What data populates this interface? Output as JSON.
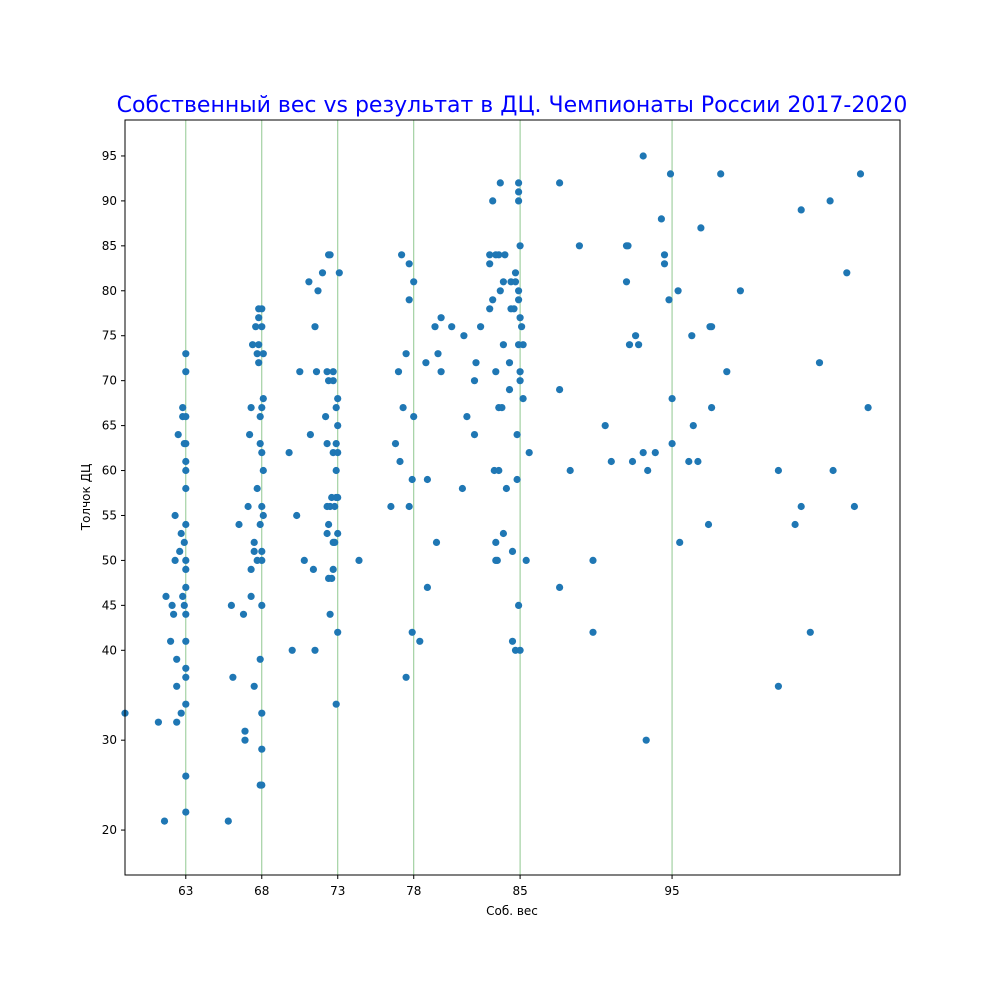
{
  "chart_data": {
    "type": "scatter",
    "title": "Собственный вес vs результат в ДЦ. Чемпионаты России 2017-2020",
    "title_color": "#0000ff",
    "xlabel": "Соб. вес",
    "ylabel": "Толчок ДЦ",
    "xlim": [
      59,
      110
    ],
    "ylim": [
      15,
      99
    ],
    "x_ticks": [
      63,
      68,
      73,
      78,
      85,
      95
    ],
    "y_ticks": [
      20,
      30,
      40,
      45,
      50,
      55,
      60,
      65,
      70,
      75,
      80,
      85,
      90,
      95
    ],
    "vertical_lines": [
      63,
      68,
      73,
      78,
      85,
      95
    ],
    "vertical_line_color": "#90c890",
    "point_color": "#1f77b4",
    "grid": false,
    "points": [
      [
        59.0,
        33
      ],
      [
        61.2,
        32
      ],
      [
        61.6,
        21
      ],
      [
        61.7,
        46
      ],
      [
        62.0,
        41
      ],
      [
        62.1,
        45
      ],
      [
        62.2,
        44
      ],
      [
        62.3,
        55
      ],
      [
        62.3,
        50
      ],
      [
        62.4,
        39
      ],
      [
        62.4,
        36
      ],
      [
        62.4,
        32
      ],
      [
        62.5,
        64
      ],
      [
        62.6,
        51
      ],
      [
        62.7,
        53
      ],
      [
        62.7,
        33
      ],
      [
        62.8,
        66
      ],
      [
        62.8,
        67
      ],
      [
        62.8,
        46
      ],
      [
        62.9,
        52
      ],
      [
        62.9,
        45
      ],
      [
        62.9,
        63
      ],
      [
        63.0,
        73
      ],
      [
        63.0,
        71
      ],
      [
        63.0,
        66
      ],
      [
        63.0,
        63
      ],
      [
        63.0,
        61
      ],
      [
        63.0,
        60
      ],
      [
        63.0,
        58
      ],
      [
        63.0,
        54
      ],
      [
        63.0,
        50
      ],
      [
        63.0,
        49
      ],
      [
        63.0,
        47
      ],
      [
        63.0,
        44
      ],
      [
        63.0,
        41
      ],
      [
        63.0,
        38
      ],
      [
        63.0,
        37
      ],
      [
        63.0,
        34
      ],
      [
        63.0,
        26
      ],
      [
        63.0,
        22
      ],
      [
        65.8,
        21
      ],
      [
        66.0,
        45
      ],
      [
        66.1,
        37
      ],
      [
        66.5,
        54
      ],
      [
        66.8,
        44
      ],
      [
        66.9,
        30
      ],
      [
        66.9,
        31
      ],
      [
        67.1,
        56
      ],
      [
        67.2,
        64
      ],
      [
        67.3,
        67
      ],
      [
        67.3,
        49
      ],
      [
        67.3,
        46
      ],
      [
        67.5,
        36
      ],
      [
        67.4,
        74
      ],
      [
        67.5,
        51
      ],
      [
        67.5,
        52
      ],
      [
        67.6,
        76
      ],
      [
        67.7,
        73
      ],
      [
        67.7,
        58
      ],
      [
        67.7,
        50
      ],
      [
        67.8,
        78
      ],
      [
        67.8,
        77
      ],
      [
        67.8,
        74
      ],
      [
        67.8,
        72
      ],
      [
        67.9,
        66
      ],
      [
        67.9,
        63
      ],
      [
        67.9,
        54
      ],
      [
        67.9,
        39
      ],
      [
        67.9,
        25
      ],
      [
        68.0,
        78
      ],
      [
        68.0,
        76
      ],
      [
        68.0,
        67
      ],
      [
        68.0,
        62
      ],
      [
        68.0,
        56
      ],
      [
        68.0,
        51
      ],
      [
        68.0,
        50
      ],
      [
        68.0,
        45
      ],
      [
        68.0,
        33
      ],
      [
        68.0,
        29
      ],
      [
        68.0,
        25
      ],
      [
        68.1,
        73
      ],
      [
        68.1,
        68
      ],
      [
        68.1,
        60
      ],
      [
        68.1,
        55
      ],
      [
        69.8,
        62
      ],
      [
        70.0,
        40
      ],
      [
        70.3,
        55
      ],
      [
        70.5,
        71
      ],
      [
        70.8,
        50
      ],
      [
        71.1,
        81
      ],
      [
        71.2,
        64
      ],
      [
        71.4,
        49
      ],
      [
        71.5,
        40
      ],
      [
        71.5,
        76
      ],
      [
        71.6,
        71
      ],
      [
        71.7,
        80
      ],
      [
        72.0,
        82
      ],
      [
        72.2,
        66
      ],
      [
        72.3,
        63
      ],
      [
        72.3,
        71
      ],
      [
        72.3,
        56
      ],
      [
        72.3,
        53
      ],
      [
        72.4,
        84
      ],
      [
        72.4,
        70
      ],
      [
        72.4,
        54
      ],
      [
        72.4,
        48
      ],
      [
        72.5,
        84
      ],
      [
        72.5,
        44
      ],
      [
        72.5,
        56
      ],
      [
        72.6,
        57
      ],
      [
        72.6,
        48
      ],
      [
        72.7,
        71
      ],
      [
        72.7,
        70
      ],
      [
        72.7,
        62
      ],
      [
        72.7,
        52
      ],
      [
        72.7,
        49
      ],
      [
        72.8,
        56
      ],
      [
        72.8,
        52
      ],
      [
        72.9,
        67
      ],
      [
        72.9,
        63
      ],
      [
        72.9,
        60
      ],
      [
        72.9,
        57
      ],
      [
        72.9,
        34
      ],
      [
        73.0,
        68
      ],
      [
        73.0,
        65
      ],
      [
        73.0,
        62
      ],
      [
        73.0,
        57
      ],
      [
        73.0,
        53
      ],
      [
        73.0,
        42
      ],
      [
        73.1,
        82
      ],
      [
        74.4,
        50
      ],
      [
        76.5,
        56
      ],
      [
        76.8,
        63
      ],
      [
        77.0,
        71
      ],
      [
        77.1,
        61
      ],
      [
        77.2,
        84
      ],
      [
        77.3,
        67
      ],
      [
        77.5,
        73
      ],
      [
        77.5,
        37
      ],
      [
        77.7,
        83
      ],
      [
        77.7,
        79
      ],
      [
        77.7,
        56
      ],
      [
        77.9,
        59
      ],
      [
        77.9,
        42
      ],
      [
        78.0,
        81
      ],
      [
        78.0,
        66
      ],
      [
        78.4,
        41
      ],
      [
        78.8,
        72
      ],
      [
        78.9,
        59
      ],
      [
        78.9,
        47
      ],
      [
        79.4,
        76
      ],
      [
        79.5,
        52
      ],
      [
        79.6,
        73
      ],
      [
        79.8,
        77
      ],
      [
        79.8,
        71
      ],
      [
        80.5,
        76
      ],
      [
        81.2,
        58
      ],
      [
        81.3,
        75
      ],
      [
        81.5,
        66
      ],
      [
        82.0,
        70
      ],
      [
        82.0,
        64
      ],
      [
        82.1,
        72
      ],
      [
        82.4,
        76
      ],
      [
        83.0,
        78
      ],
      [
        83.0,
        83
      ],
      [
        83.0,
        84
      ],
      [
        83.2,
        79
      ],
      [
        83.2,
        90
      ],
      [
        83.3,
        60
      ],
      [
        83.4,
        84
      ],
      [
        83.4,
        71
      ],
      [
        83.4,
        52
      ],
      [
        83.4,
        50
      ],
      [
        83.5,
        50
      ],
      [
        83.6,
        84
      ],
      [
        83.6,
        67
      ],
      [
        83.6,
        60
      ],
      [
        83.7,
        80
      ],
      [
        83.7,
        92
      ],
      [
        83.8,
        67
      ],
      [
        83.9,
        81
      ],
      [
        83.9,
        74
      ],
      [
        83.9,
        53
      ],
      [
        84.0,
        84
      ],
      [
        84.1,
        58
      ],
      [
        84.3,
        72
      ],
      [
        84.3,
        69
      ],
      [
        84.4,
        81
      ],
      [
        84.4,
        78
      ],
      [
        84.5,
        51
      ],
      [
        84.5,
        41
      ],
      [
        84.6,
        78
      ],
      [
        84.7,
        82
      ],
      [
        84.7,
        81
      ],
      [
        84.7,
        40
      ],
      [
        84.8,
        64
      ],
      [
        84.8,
        59
      ],
      [
        84.9,
        91
      ],
      [
        84.9,
        45
      ],
      [
        84.9,
        92
      ],
      [
        84.9,
        74
      ],
      [
        84.9,
        80
      ],
      [
        84.9,
        90
      ],
      [
        84.9,
        79
      ],
      [
        85.0,
        85
      ],
      [
        85.0,
        77
      ],
      [
        85.0,
        71
      ],
      [
        85.0,
        70
      ],
      [
        85.0,
        40
      ],
      [
        85.1,
        76
      ],
      [
        85.2,
        74
      ],
      [
        85.2,
        68
      ],
      [
        85.4,
        50
      ],
      [
        85.6,
        62
      ],
      [
        87.6,
        92
      ],
      [
        87.6,
        69
      ],
      [
        87.6,
        47
      ],
      [
        88.3,
        60
      ],
      [
        88.9,
        85
      ],
      [
        89.8,
        50
      ],
      [
        89.8,
        42
      ],
      [
        90.6,
        65
      ],
      [
        91.0,
        61
      ],
      [
        92.0,
        85
      ],
      [
        92.0,
        81
      ],
      [
        92.1,
        85
      ],
      [
        92.2,
        74
      ],
      [
        92.4,
        61
      ],
      [
        92.6,
        75
      ],
      [
        92.8,
        74
      ],
      [
        93.1,
        62
      ],
      [
        93.1,
        95
      ],
      [
        93.3,
        30
      ],
      [
        93.4,
        60
      ],
      [
        93.9,
        62
      ],
      [
        94.3,
        88
      ],
      [
        94.5,
        84
      ],
      [
        94.5,
        83
      ],
      [
        94.8,
        79
      ],
      [
        94.9,
        93
      ],
      [
        95.0,
        63
      ],
      [
        95.0,
        68
      ],
      [
        95.4,
        80
      ],
      [
        95.5,
        52
      ],
      [
        96.1,
        61
      ],
      [
        96.3,
        75
      ],
      [
        96.4,
        65
      ],
      [
        96.7,
        61
      ],
      [
        96.9,
        87
      ],
      [
        97.4,
        54
      ],
      [
        97.5,
        76
      ],
      [
        97.6,
        76
      ],
      [
        97.6,
        67
      ],
      [
        98.2,
        93
      ],
      [
        98.6,
        71
      ],
      [
        99.5,
        80
      ],
      [
        102.0,
        60
      ],
      [
        102.0,
        36
      ],
      [
        103.1,
        54
      ],
      [
        103.5,
        56
      ],
      [
        103.5,
        89
      ],
      [
        104.1,
        42
      ],
      [
        104.7,
        72
      ],
      [
        105.4,
        90
      ],
      [
        105.6,
        60
      ],
      [
        106.5,
        82
      ],
      [
        107.0,
        56
      ],
      [
        107.4,
        93
      ],
      [
        107.9,
        67
      ]
    ]
  }
}
